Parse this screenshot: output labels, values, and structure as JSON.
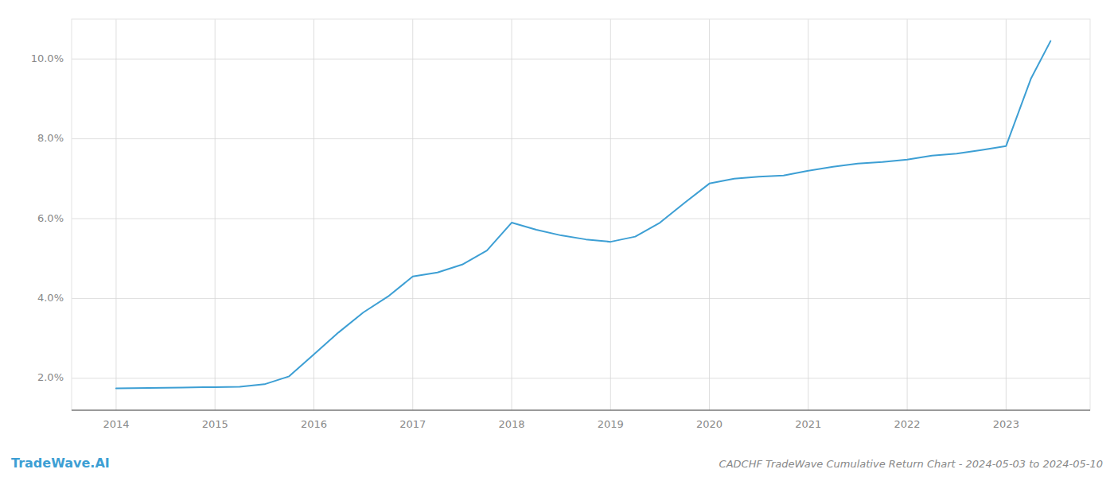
{
  "chart_data": {
    "type": "line",
    "title": "CADCHF TradeWave Cumulative Return Chart - 2024-05-03 to 2024-05-10",
    "annotations": [
      "TradeWave.AI"
    ],
    "x": [
      2014.0,
      2014.33,
      2014.67,
      2015.0,
      2015.25,
      2015.5,
      2015.75,
      2016.0,
      2016.25,
      2016.5,
      2016.75,
      2017.0,
      2017.25,
      2017.5,
      2017.75,
      2018.0,
      2018.25,
      2018.5,
      2018.75,
      2019.0,
      2019.25,
      2019.5,
      2019.75,
      2020.0,
      2020.25,
      2020.5,
      2020.75,
      2021.0,
      2021.25,
      2021.5,
      2021.75,
      2022.0,
      2022.25,
      2022.5,
      2022.75,
      2023.0,
      2023.25,
      2023.45
    ],
    "values": [
      1.75,
      1.76,
      1.77,
      1.78,
      1.79,
      1.85,
      2.05,
      2.6,
      3.15,
      3.65,
      4.05,
      4.55,
      4.65,
      4.85,
      5.2,
      5.9,
      5.72,
      5.58,
      5.48,
      5.42,
      5.55,
      5.9,
      6.4,
      6.88,
      7.0,
      7.05,
      7.08,
      7.2,
      7.3,
      7.38,
      7.42,
      7.48,
      7.58,
      7.63,
      7.72,
      7.82,
      9.5,
      10.45
    ],
    "color": "#3d9fd4",
    "xlim": [
      2013.55,
      2023.85
    ],
    "ylim": [
      1.2,
      11.0
    ],
    "xticks": [
      2014,
      2015,
      2016,
      2017,
      2018,
      2019,
      2020,
      2021,
      2022,
      2023
    ],
    "yticks": [
      {
        "value": 2.0,
        "label": "2.0%"
      },
      {
        "value": 4.0,
        "label": "4.0%"
      },
      {
        "value": 6.0,
        "label": "6.0%"
      },
      {
        "value": 8.0,
        "label": "8.0%"
      },
      {
        "value": 10.0,
        "label": "10.0%"
      }
    ],
    "grid": true
  }
}
